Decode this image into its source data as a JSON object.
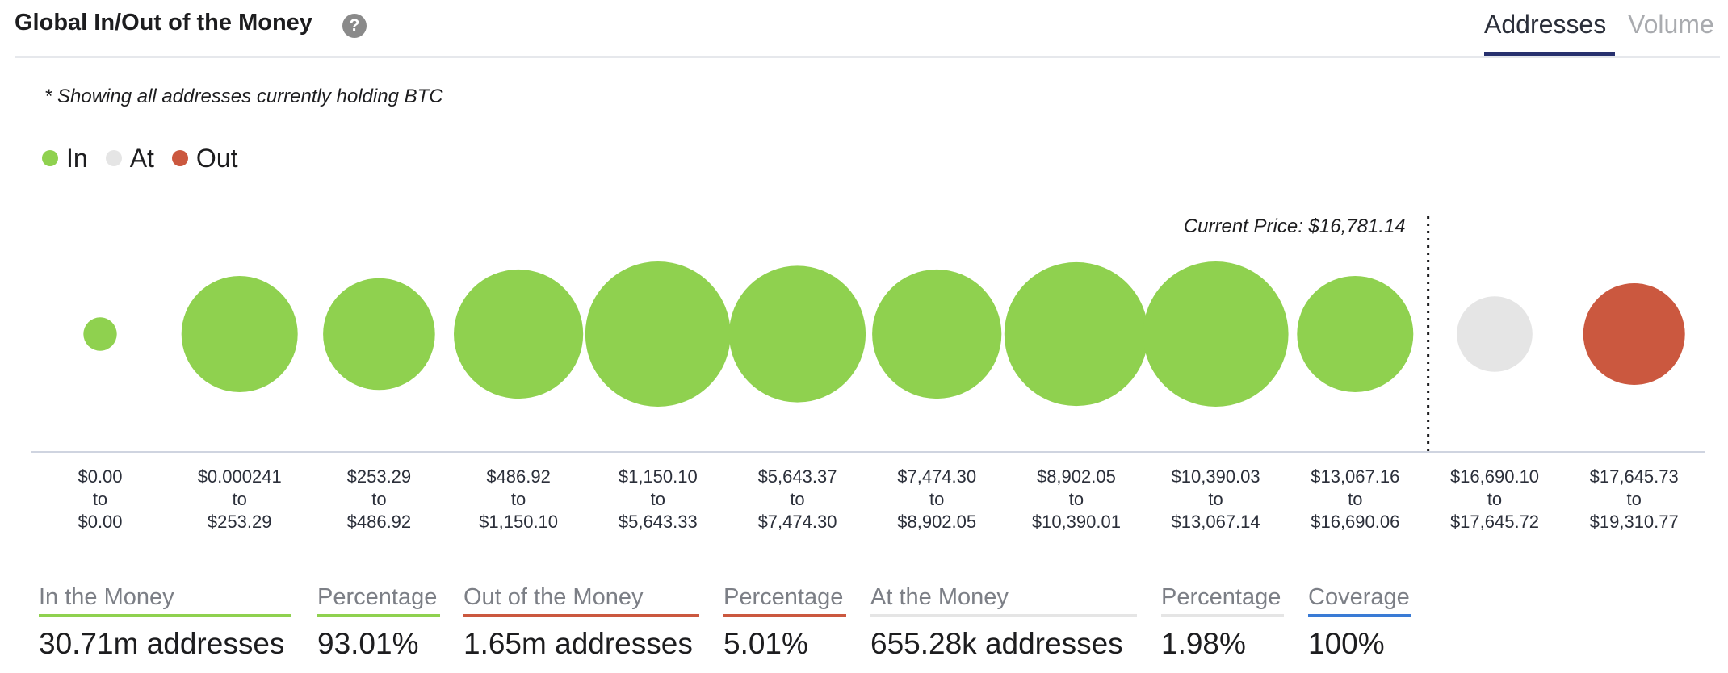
{
  "header": {
    "title": "Global In/Out of the Money",
    "help_icon": "help-icon",
    "help_glyph": "?",
    "tabs": [
      "Addresses",
      "Volume"
    ],
    "active_tab": "Addresses"
  },
  "note": "* Showing all addresses currently holding BTC",
  "legend": [
    {
      "label": "In",
      "color": "#8fd14f"
    },
    {
      "label": "At",
      "color": "#e5e5e5"
    },
    {
      "label": "Out",
      "color": "#cb583f"
    }
  ],
  "chart_data": {
    "type": "bubble",
    "title": "Global In/Out of the Money",
    "x_axis": "price range",
    "size_metric": "addresses",
    "current_price_label": "Current Price: $16,781.14",
    "current_price": 16781.14,
    "categories": [
      [
        "$0.00",
        "to",
        "$0.00"
      ],
      [
        "$0.000241",
        "to",
        "$253.29"
      ],
      [
        "$253.29",
        "to",
        "$486.92"
      ],
      [
        "$486.92",
        "to",
        "$1,150.10"
      ],
      [
        "$1,150.10",
        "to",
        "$5,643.33"
      ],
      [
        "$5,643.37",
        "to",
        "$7,474.30"
      ],
      [
        "$7,474.30",
        "to",
        "$8,902.05"
      ],
      [
        "$8,902.05",
        "to",
        "$10,390.01"
      ],
      [
        "$10,390.03",
        "to",
        "$13,067.14"
      ],
      [
        "$13,067.16",
        "to",
        "$16,690.06"
      ],
      [
        "$16,690.10",
        "to",
        "$17,645.72"
      ],
      [
        "$17,645.73",
        "to",
        "$19,310.77"
      ]
    ],
    "status": [
      "In",
      "In",
      "In",
      "In",
      "In",
      "In",
      "In",
      "In",
      "In",
      "In",
      "At",
      "Out"
    ],
    "relative_size": [
      0.23,
      0.8,
      0.77,
      0.89,
      1.0,
      0.94,
      0.89,
      0.99,
      1.0,
      0.8,
      0.52,
      0.7
    ]
  },
  "stats": [
    {
      "label": "In the Money",
      "value": "30.71m addresses",
      "color": "#8fd14f"
    },
    {
      "label": "Percentage",
      "value": "93.01%",
      "color": "#8fd14f"
    },
    {
      "label": "Out of the Money",
      "value": "1.65m addresses",
      "color": "#cb583f"
    },
    {
      "label": "Percentage",
      "value": "5.01%",
      "color": "#cb583f"
    },
    {
      "label": "At the Money",
      "value": "655.28k addresses",
      "color": "#e5e5e5"
    },
    {
      "label": "Percentage",
      "value": "1.98%",
      "color": "#e5e5e5"
    },
    {
      "label": "Coverage",
      "value": "100%",
      "color": "#3a7bd5"
    }
  ]
}
